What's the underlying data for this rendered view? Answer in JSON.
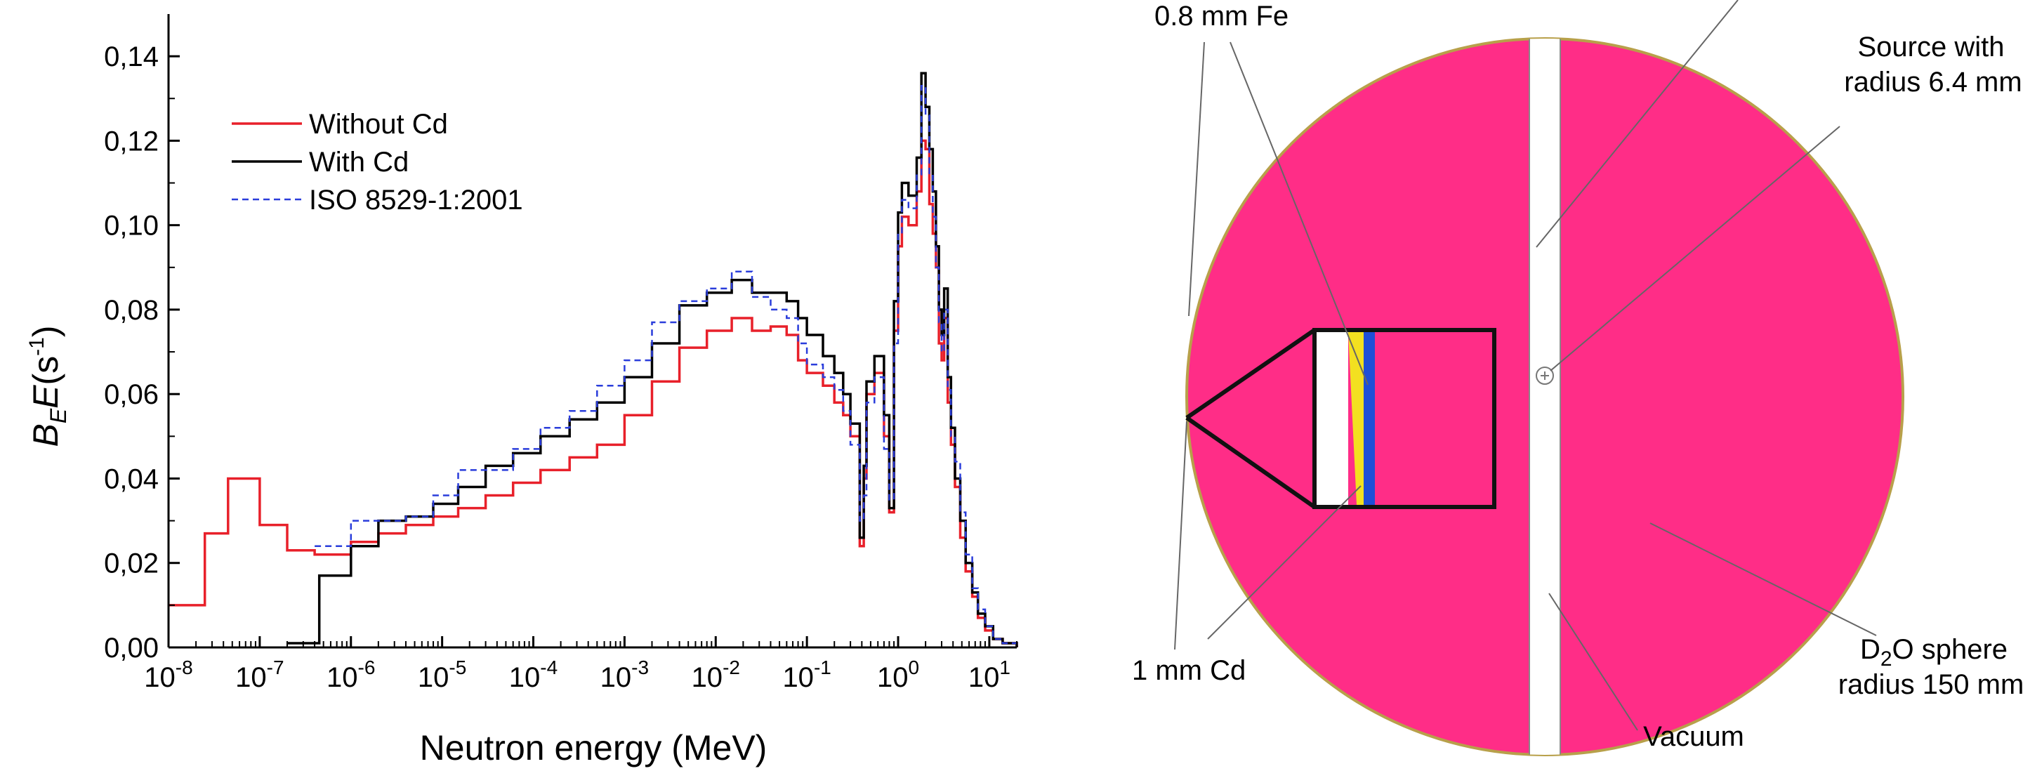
{
  "chart_data": {
    "type": "line",
    "step": true,
    "xscale": "log",
    "xlim": [
      1e-08,
      20
    ],
    "ylim": [
      0,
      0.15
    ],
    "xlabel": "Neutron energy (MeV)",
    "ylabel_parts": {
      "b": "B",
      "b_sub": "E",
      "e": "E",
      "open": "(s",
      "exp": "-1",
      "close": ")"
    },
    "x_ticks": [
      {
        "base": "10",
        "exp": "-8"
      },
      {
        "base": "10",
        "exp": "-7"
      },
      {
        "base": "10",
        "exp": "-6"
      },
      {
        "base": "10",
        "exp": "-5"
      },
      {
        "base": "10",
        "exp": "-4"
      },
      {
        "base": "10",
        "exp": "-3"
      },
      {
        "base": "10",
        "exp": "-2"
      },
      {
        "base": "10",
        "exp": "-1"
      },
      {
        "base": "10",
        "exp": "0"
      },
      {
        "base": "10",
        "exp": "1"
      }
    ],
    "y_ticks": [
      "0,00",
      "0,02",
      "0,04",
      "0,06",
      "0,08",
      "0,10",
      "0,12",
      "0,14"
    ],
    "y_tick_values": [
      0,
      0.02,
      0.04,
      0.06,
      0.08,
      0.1,
      0.12,
      0.14
    ],
    "grid": false,
    "legend_position": "top-left",
    "series": [
      {
        "name": "Without Cd",
        "color": "#e8202a",
        "dash": "solid",
        "x": [
          1e-08,
          2.5e-08,
          4.5e-08,
          1e-07,
          2e-07,
          4e-07,
          1e-06,
          2e-06,
          4e-06,
          8e-06,
          1.5e-05,
          3e-05,
          6e-05,
          0.00012,
          0.00025,
          0.0005,
          0.001,
          0.002,
          0.004,
          0.008,
          0.015,
          0.025,
          0.04,
          0.06,
          0.08,
          0.1,
          0.15,
          0.2,
          0.25,
          0.3,
          0.38,
          0.42,
          0.45,
          0.55,
          0.7,
          0.8,
          0.9,
          1.0,
          1.1,
          1.3,
          1.6,
          1.8,
          2.0,
          2.2,
          2.4,
          2.6,
          2.8,
          3.0,
          3.2,
          3.5,
          3.8,
          4.2,
          4.8,
          5.5,
          6.5,
          7.5,
          9,
          11,
          14,
          20
        ],
        "y": [
          0.01,
          0.027,
          0.04,
          0.029,
          0.023,
          0.022,
          0.025,
          0.027,
          0.029,
          0.031,
          0.033,
          0.036,
          0.039,
          0.042,
          0.045,
          0.048,
          0.055,
          0.063,
          0.071,
          0.075,
          0.078,
          0.075,
          0.076,
          0.074,
          0.068,
          0.065,
          0.062,
          0.058,
          0.055,
          0.05,
          0.024,
          0.04,
          0.06,
          0.065,
          0.05,
          0.032,
          0.075,
          0.095,
          0.102,
          0.1,
          0.108,
          0.12,
          0.118,
          0.105,
          0.098,
          0.09,
          0.072,
          0.068,
          0.078,
          0.058,
          0.048,
          0.038,
          0.026,
          0.018,
          0.012,
          0.007,
          0.004,
          0.002,
          0.001,
          0.0
        ]
      },
      {
        "name": "With Cd",
        "color": "#000000",
        "dash": "solid",
        "x": [
          2e-07,
          4.5e-07,
          1e-06,
          2e-06,
          4e-06,
          8e-06,
          1.5e-05,
          3e-05,
          6e-05,
          0.00012,
          0.00025,
          0.0005,
          0.001,
          0.002,
          0.004,
          0.008,
          0.015,
          0.025,
          0.04,
          0.06,
          0.08,
          0.1,
          0.15,
          0.2,
          0.25,
          0.3,
          0.38,
          0.42,
          0.45,
          0.55,
          0.7,
          0.8,
          0.9,
          1.0,
          1.1,
          1.3,
          1.6,
          1.8,
          2.0,
          2.2,
          2.4,
          2.6,
          2.8,
          3.0,
          3.2,
          3.5,
          3.8,
          4.2,
          4.8,
          5.5,
          6.5,
          7.5,
          9,
          11,
          14,
          20
        ],
        "y": [
          0.001,
          0.017,
          0.024,
          0.03,
          0.031,
          0.034,
          0.038,
          0.043,
          0.046,
          0.05,
          0.054,
          0.058,
          0.064,
          0.072,
          0.081,
          0.084,
          0.087,
          0.084,
          0.084,
          0.082,
          0.078,
          0.074,
          0.069,
          0.065,
          0.06,
          0.053,
          0.026,
          0.043,
          0.063,
          0.069,
          0.055,
          0.033,
          0.082,
          0.103,
          0.11,
          0.107,
          0.116,
          0.136,
          0.128,
          0.118,
          0.108,
          0.095,
          0.08,
          0.074,
          0.085,
          0.064,
          0.052,
          0.04,
          0.03,
          0.02,
          0.013,
          0.008,
          0.005,
          0.002,
          0.001,
          0.0
        ]
      },
      {
        "name": "ISO 8529-1:2001",
        "color": "#2a3ddb",
        "dash": "dashed",
        "x": [
          4e-07,
          1e-06,
          2e-06,
          4e-06,
          8e-06,
          1.5e-05,
          3e-05,
          6e-05,
          0.00012,
          0.00025,
          0.0005,
          0.001,
          0.002,
          0.004,
          0.008,
          0.015,
          0.025,
          0.04,
          0.06,
          0.08,
          0.1,
          0.15,
          0.2,
          0.25,
          0.3,
          0.38,
          0.42,
          0.45,
          0.55,
          0.7,
          0.8,
          0.9,
          1.0,
          1.1,
          1.3,
          1.6,
          1.8,
          2.0,
          2.2,
          2.4,
          2.6,
          2.8,
          3.0,
          3.2,
          3.5,
          3.8,
          4.2,
          4.8,
          5.5,
          6.5,
          7.5,
          9,
          11,
          14,
          20
        ],
        "y": [
          0.024,
          0.03,
          0.03,
          0.031,
          0.036,
          0.042,
          0.042,
          0.047,
          0.052,
          0.056,
          0.062,
          0.068,
          0.077,
          0.082,
          0.085,
          0.089,
          0.083,
          0.08,
          0.078,
          0.072,
          0.067,
          0.064,
          0.061,
          0.056,
          0.048,
          0.03,
          0.036,
          0.058,
          0.064,
          0.047,
          0.035,
          0.072,
          0.098,
          0.106,
          0.104,
          0.112,
          0.133,
          0.126,
          0.112,
          0.102,
          0.09,
          0.077,
          0.07,
          0.08,
          0.061,
          0.05,
          0.044,
          0.032,
          0.022,
          0.014,
          0.009,
          0.005,
          0.002,
          0.001,
          0.0
        ]
      }
    ]
  },
  "diagram": {
    "labels": {
      "fe": "0.8 mm Fe",
      "cd": "1 mm Cd",
      "source_line1": "Source with",
      "source_line2": "radius 6.4 mm",
      "sphere_d": "D",
      "sphere_sub": "2",
      "sphere_rest": "O sphere",
      "sphere_line2": "radius 150 mm",
      "vacuum": "Vacuum"
    },
    "colors": {
      "d2o": "#ff2d87",
      "cd_layer": "#f3e020",
      "fe_layer": "#1f4fd6",
      "vacuum": "#ffffff",
      "outline": "#777777"
    }
  }
}
